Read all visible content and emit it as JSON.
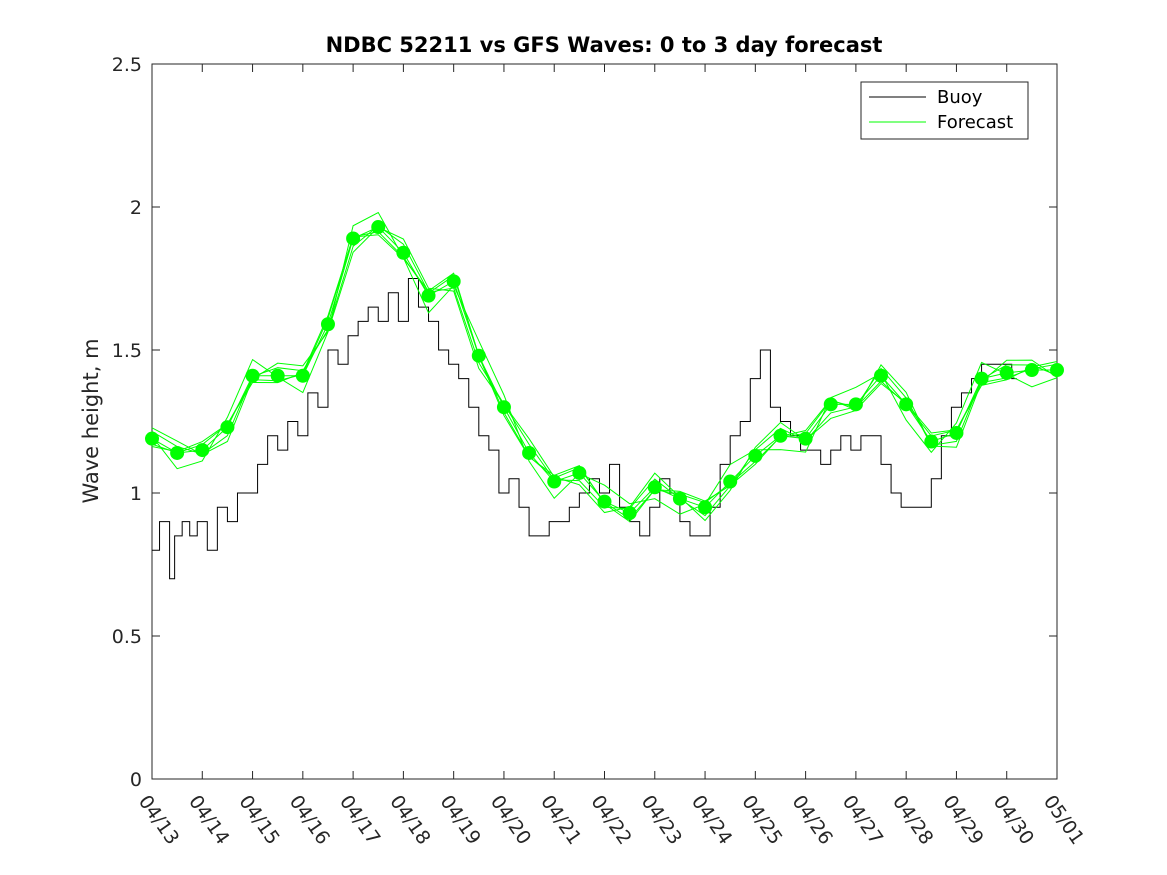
{
  "chart_data": {
    "type": "line",
    "title": "NDBC 52211 vs GFS Waves: 0 to 3 day forecast",
    "xlabel": "",
    "ylabel": "Wave height, m",
    "ylim": [
      0,
      2.5
    ],
    "y_ticks": [
      "0",
      "0.5",
      "1",
      "1.5",
      "2",
      "2.5"
    ],
    "x_range_days": [
      "04/13",
      "05/01"
    ],
    "x_ticks": [
      "04/13",
      "04/14",
      "04/15",
      "04/16",
      "04/17",
      "04/18",
      "04/19",
      "04/20",
      "04/21",
      "04/22",
      "04/23",
      "04/24",
      "04/25",
      "04/26",
      "04/27",
      "04/28",
      "04/29",
      "04/30",
      "05/01"
    ],
    "x_tick_label_rotation": "-55deg",
    "grid": false,
    "legend": {
      "placement": "top-right",
      "entries": [
        "Buoy",
        "Forecast"
      ]
    },
    "colors": {
      "buoy": "#000000",
      "forecast": "#00ff00",
      "axis": "#262626"
    },
    "buoy": {
      "name": "Buoy",
      "x_days_since_0413": [
        0,
        0.3,
        0.4,
        0.5,
        0.7,
        0.8,
        1.0,
        1.2,
        1.4,
        1.6,
        1.8,
        2.0,
        2.2,
        2.4,
        2.6,
        2.8,
        3.0,
        3.2,
        3.4,
        3.6,
        3.8,
        4.0,
        4.2,
        4.4,
        4.6,
        4.8,
        5.0,
        5.2,
        5.4,
        5.6,
        5.8,
        6.0,
        6.2,
        6.4,
        6.6,
        6.8,
        7.0,
        7.2,
        7.4,
        7.6,
        7.8,
        8.0,
        8.2,
        8.4,
        8.6,
        8.8,
        9.0,
        9.2,
        9.4,
        9.6,
        9.8,
        10.0,
        10.2,
        10.4,
        10.6,
        10.8,
        11.0,
        11.2,
        11.4,
        11.6,
        11.8,
        12.0,
        12.2,
        12.4,
        12.6,
        12.8,
        13.0,
        13.2,
        13.4,
        13.6,
        13.8,
        14.0,
        14.2,
        14.4,
        14.6,
        14.8,
        15.0,
        15.2,
        15.4,
        15.6,
        15.8,
        16.0,
        16.2,
        16.4,
        16.6,
        16.8,
        17.0,
        17.2
      ],
      "y": [
        0.8,
        0.9,
        0.7,
        0.85,
        0.9,
        0.85,
        0.9,
        0.8,
        0.95,
        0.9,
        1.0,
        1.0,
        1.1,
        1.2,
        1.15,
        1.25,
        1.2,
        1.35,
        1.3,
        1.5,
        1.45,
        1.55,
        1.6,
        1.65,
        1.6,
        1.7,
        1.6,
        1.75,
        1.65,
        1.6,
        1.5,
        1.45,
        1.4,
        1.3,
        1.2,
        1.15,
        1.0,
        1.05,
        0.95,
        0.85,
        0.85,
        0.9,
        0.9,
        0.95,
        1.0,
        1.05,
        1.0,
        1.1,
        0.95,
        0.9,
        0.85,
        0.95,
        1.05,
        1.0,
        0.9,
        0.85,
        0.85,
        0.95,
        1.1,
        1.2,
        1.25,
        1.4,
        1.5,
        1.3,
        1.25,
        1.2,
        1.15,
        1.15,
        1.1,
        1.15,
        1.2,
        1.15,
        1.2,
        1.2,
        1.1,
        1.0,
        0.95,
        0.95,
        0.95,
        1.05,
        1.2,
        1.3,
        1.35,
        1.4,
        1.45,
        1.45,
        1.45,
        1.4
      ]
    },
    "forecast": {
      "name": "Forecast",
      "x_days_since_0413": [
        0,
        0.5,
        1,
        1.5,
        2,
        2.5,
        3,
        3.5,
        4,
        4.5,
        5,
        5.5,
        6,
        6.5,
        7,
        7.5,
        8,
        8.5,
        9,
        9.5,
        10,
        10.5,
        11,
        11.5,
        12,
        12.5,
        13,
        13.5,
        14,
        14.5,
        15,
        15.5,
        16,
        16.5,
        17,
        17.5,
        18
      ],
      "y": [
        1.19,
        1.14,
        1.15,
        1.23,
        1.41,
        1.41,
        1.41,
        1.59,
        1.89,
        1.93,
        1.84,
        1.69,
        1.74,
        1.48,
        1.3,
        1.14,
        1.04,
        1.07,
        0.97,
        0.93,
        1.02,
        0.98,
        0.95,
        1.04,
        1.13,
        1.2,
        1.19,
        1.31,
        1.31,
        1.41,
        1.31,
        1.18,
        1.21,
        1.4,
        1.42,
        1.43,
        1.43
      ],
      "marker_days": [
        0,
        0.5,
        1,
        1.5,
        2,
        2.5,
        3,
        3.5,
        4,
        4.5,
        5,
        5.5,
        6,
        6.5,
        7,
        7.5,
        8,
        8.5,
        9,
        9.5,
        10,
        10.5,
        11,
        11.5,
        12,
        12.5,
        13,
        13.5,
        14,
        14.5,
        15,
        15.5,
        16,
        16.5,
        17,
        17.5,
        18
      ],
      "marker_y": [
        1.19,
        1.14,
        1.15,
        1.23,
        1.41,
        1.41,
        1.41,
        1.59,
        1.89,
        1.93,
        1.84,
        1.69,
        1.74,
        1.48,
        1.3,
        1.14,
        1.04,
        1.07,
        0.97,
        0.93,
        1.02,
        0.98,
        0.95,
        1.04,
        1.13,
        1.2,
        1.19,
        1.31,
        1.31,
        1.41,
        1.31,
        1.18,
        1.21,
        1.4,
        1.42,
        1.43,
        1.43
      ]
    }
  }
}
